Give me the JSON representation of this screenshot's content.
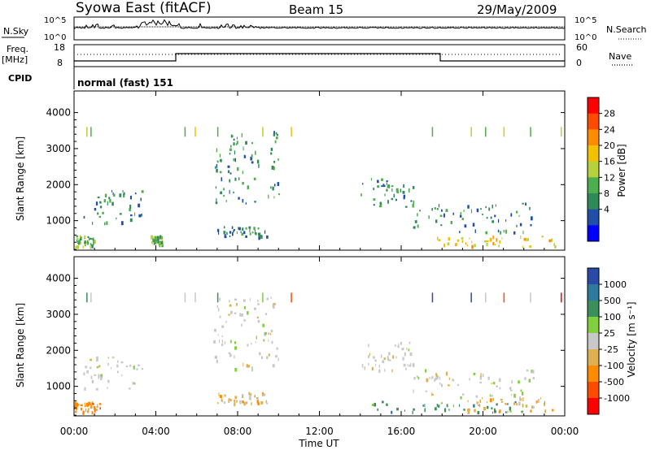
{
  "header": {
    "title": "Syowa East (fitACF)",
    "beam": "Beam 15",
    "date": "29/May/2009"
  },
  "status_panels": {
    "nsky_label": "N.Sky",
    "nsky_ticks": [
      "10^5",
      "10^0"
    ],
    "nsearch_label": "N.Search",
    "nsearch_ticks": [
      "10^5",
      "10^0"
    ],
    "freq_label": "Freq.",
    "freq_unit": "[MHz]",
    "freq_ticks": [
      "18",
      "8"
    ],
    "nave_label": "Nave",
    "nave_ticks": [
      "60",
      "0"
    ],
    "cpid_label": "CPID",
    "cpid_value": "normal (fast) 151"
  },
  "chart_data": [
    {
      "type": "heatmap",
      "panel": "power",
      "ylabel": "Slant Range [km]",
      "ylim": [
        180,
        4600
      ],
      "yticks": [
        "4000",
        "3000",
        "2000",
        "1000"
      ],
      "xlim_hours": [
        0,
        24
      ],
      "xtick_labels": [
        "00:00",
        "04:00",
        "08:00",
        "12:00",
        "16:00",
        "20:00",
        "00:00"
      ],
      "colorbar_label": "Power [dB]",
      "colorbar_ticks": [
        "28",
        "24",
        "20",
        "16",
        "12",
        "8",
        "4"
      ],
      "colorbar_colors": [
        "#ff0000",
        "#ff4a00",
        "#ff8c00",
        "#f2c200",
        "#b5d23a",
        "#4cae4c",
        "#2e8b57",
        "#1f4fa8",
        "#0000ff"
      ],
      "echo_regions": [
        {
          "t0": 0.0,
          "t1": 1.0,
          "r0": 300,
          "r1": 600,
          "level": 12
        },
        {
          "t0": 0.3,
          "t1": 3.3,
          "r0": 950,
          "r1": 1900,
          "level": 6
        },
        {
          "t0": 3.7,
          "t1": 4.3,
          "r0": 350,
          "r1": 600,
          "level": 12
        },
        {
          "t0": 6.8,
          "t1": 9.4,
          "r0": 550,
          "r1": 850,
          "level": 8
        },
        {
          "t0": 6.8,
          "t1": 10.0,
          "r0": 1500,
          "r1": 3500,
          "level": 7
        },
        {
          "t0": 14.0,
          "t1": 16.6,
          "r0": 1400,
          "r1": 2300,
          "level": 6
        },
        {
          "t0": 16.5,
          "t1": 22.5,
          "r0": 700,
          "r1": 1500,
          "level": 6
        },
        {
          "t0": 17.5,
          "t1": 23.5,
          "r0": 300,
          "r1": 600,
          "level": 20
        }
      ]
    },
    {
      "type": "heatmap",
      "panel": "velocity",
      "ylabel": "Slant Range [km]",
      "ylim": [
        180,
        4600
      ],
      "yticks": [
        "4000",
        "3000",
        "2000",
        "1000"
      ],
      "xlim_hours": [
        0,
        24
      ],
      "xtick_labels": [
        "00:00",
        "04:00",
        "08:00",
        "12:00",
        "16:00",
        "20:00",
        "00:00"
      ],
      "xlabel": "Time UT",
      "colorbar_label": "Velocity [m s⁻¹]",
      "colorbar_ticks": [
        "1000",
        "500",
        "100",
        "25",
        "-25",
        "-100",
        "-500",
        "-1000"
      ],
      "colorbar_colors": [
        "#2a4aa8",
        "#2e7a9e",
        "#3b8f5a",
        "#7fcf3f",
        "#c8c8c8",
        "#e0b050",
        "#ff8c00",
        "#ff4a00",
        "#ff0000"
      ],
      "echo_regions": [
        {
          "t0": 0.0,
          "t1": 1.3,
          "r0": 300,
          "r1": 600,
          "level": -120
        },
        {
          "t0": 0.3,
          "t1": 3.3,
          "r0": 950,
          "r1": 1900,
          "level": 0
        },
        {
          "t0": 6.8,
          "t1": 9.4,
          "r0": 550,
          "r1": 850,
          "level": -60
        },
        {
          "t0": 6.8,
          "t1": 10.0,
          "r0": 1500,
          "r1": 3500,
          "level": 0
        },
        {
          "t0": 14.0,
          "t1": 16.6,
          "r0": 1400,
          "r1": 2300,
          "level": 0
        },
        {
          "t0": 14.5,
          "t1": 22.0,
          "r0": 300,
          "r1": 600,
          "level": 200
        },
        {
          "t0": 19.0,
          "t1": 23.5,
          "r0": 300,
          "r1": 700,
          "level": -80
        },
        {
          "t0": 16.5,
          "t1": 22.5,
          "r0": 700,
          "r1": 1500,
          "level": 0
        }
      ]
    }
  ]
}
